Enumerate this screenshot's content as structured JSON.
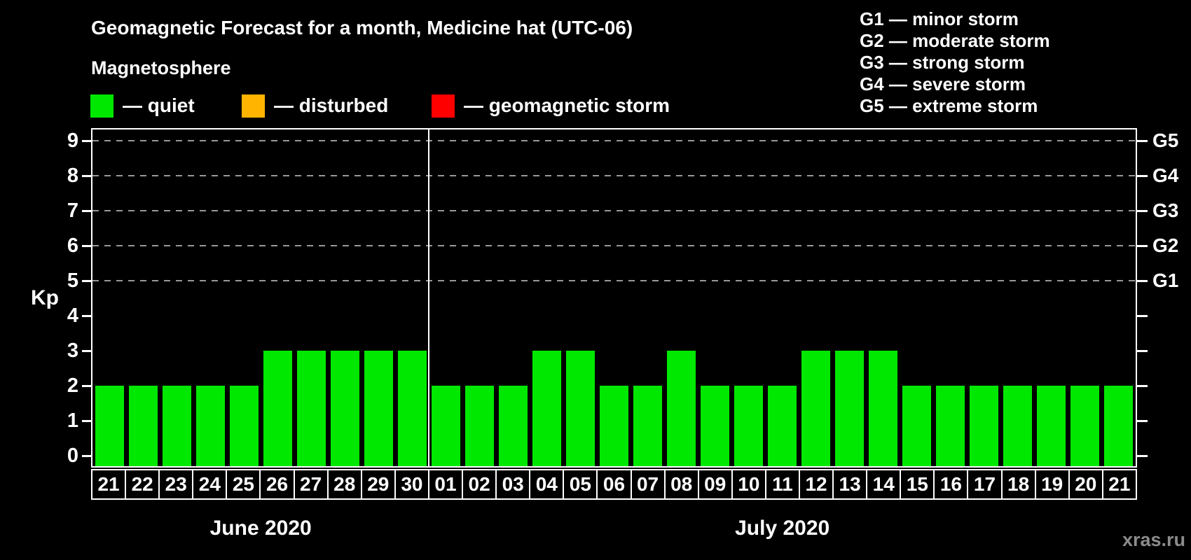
{
  "title": "Geomagnetic Forecast for a month, Medicine hat (UTC-06)",
  "subtitle": "Magnetosphere",
  "legend": {
    "items": [
      {
        "label": "— quiet",
        "color": "#00e800"
      },
      {
        "label": "— disturbed",
        "color": "#ffb400"
      },
      {
        "label": "— geomagnetic storm",
        "color": "#ff0000"
      }
    ]
  },
  "g_legend": {
    "items": [
      "G1 — minor storm",
      "G2 — moderate storm",
      "G3 — strong storm",
      "G4 — severe storm",
      "G5 — extreme storm"
    ]
  },
  "watermark": "xras.ru",
  "chart_data": {
    "type": "bar",
    "ylabel": "Kp",
    "ylim": [
      0,
      9
    ],
    "y_ticks": [
      "0",
      "1",
      "2",
      "3",
      "4",
      "5",
      "6",
      "7",
      "8",
      "9"
    ],
    "gridlines_at": [
      5,
      6,
      7,
      8,
      9
    ],
    "grid_style": "dashed gray horizontal lines only at G-storm levels",
    "right_axis": [
      {
        "kp": 5,
        "label": "G1"
      },
      {
        "kp": 6,
        "label": "G2"
      },
      {
        "kp": 7,
        "label": "G3"
      },
      {
        "kp": 8,
        "label": "G4"
      },
      {
        "kp": 9,
        "label": "G5"
      }
    ],
    "colors": {
      "quiet": "#00e800",
      "disturbed": "#ffb400",
      "storm": "#ff0000"
    },
    "legend_position": "top",
    "months": [
      {
        "label": "June 2020",
        "days": [
          "21",
          "22",
          "23",
          "24",
          "25",
          "26",
          "27",
          "28",
          "29",
          "30"
        ],
        "values": [
          2,
          2,
          2,
          2,
          2,
          3,
          3,
          3,
          3,
          3
        ]
      },
      {
        "label": "July 2020",
        "days": [
          "01",
          "02",
          "03",
          "04",
          "05",
          "06",
          "07",
          "08",
          "09",
          "10",
          "11",
          "12",
          "13",
          "14",
          "15",
          "16",
          "17",
          "18",
          "19",
          "20",
          "21"
        ],
        "values": [
          2,
          2,
          2,
          3,
          3,
          2,
          2,
          3,
          2,
          2,
          2,
          3,
          3,
          3,
          2,
          2,
          2,
          2,
          2,
          2,
          2
        ]
      }
    ]
  }
}
